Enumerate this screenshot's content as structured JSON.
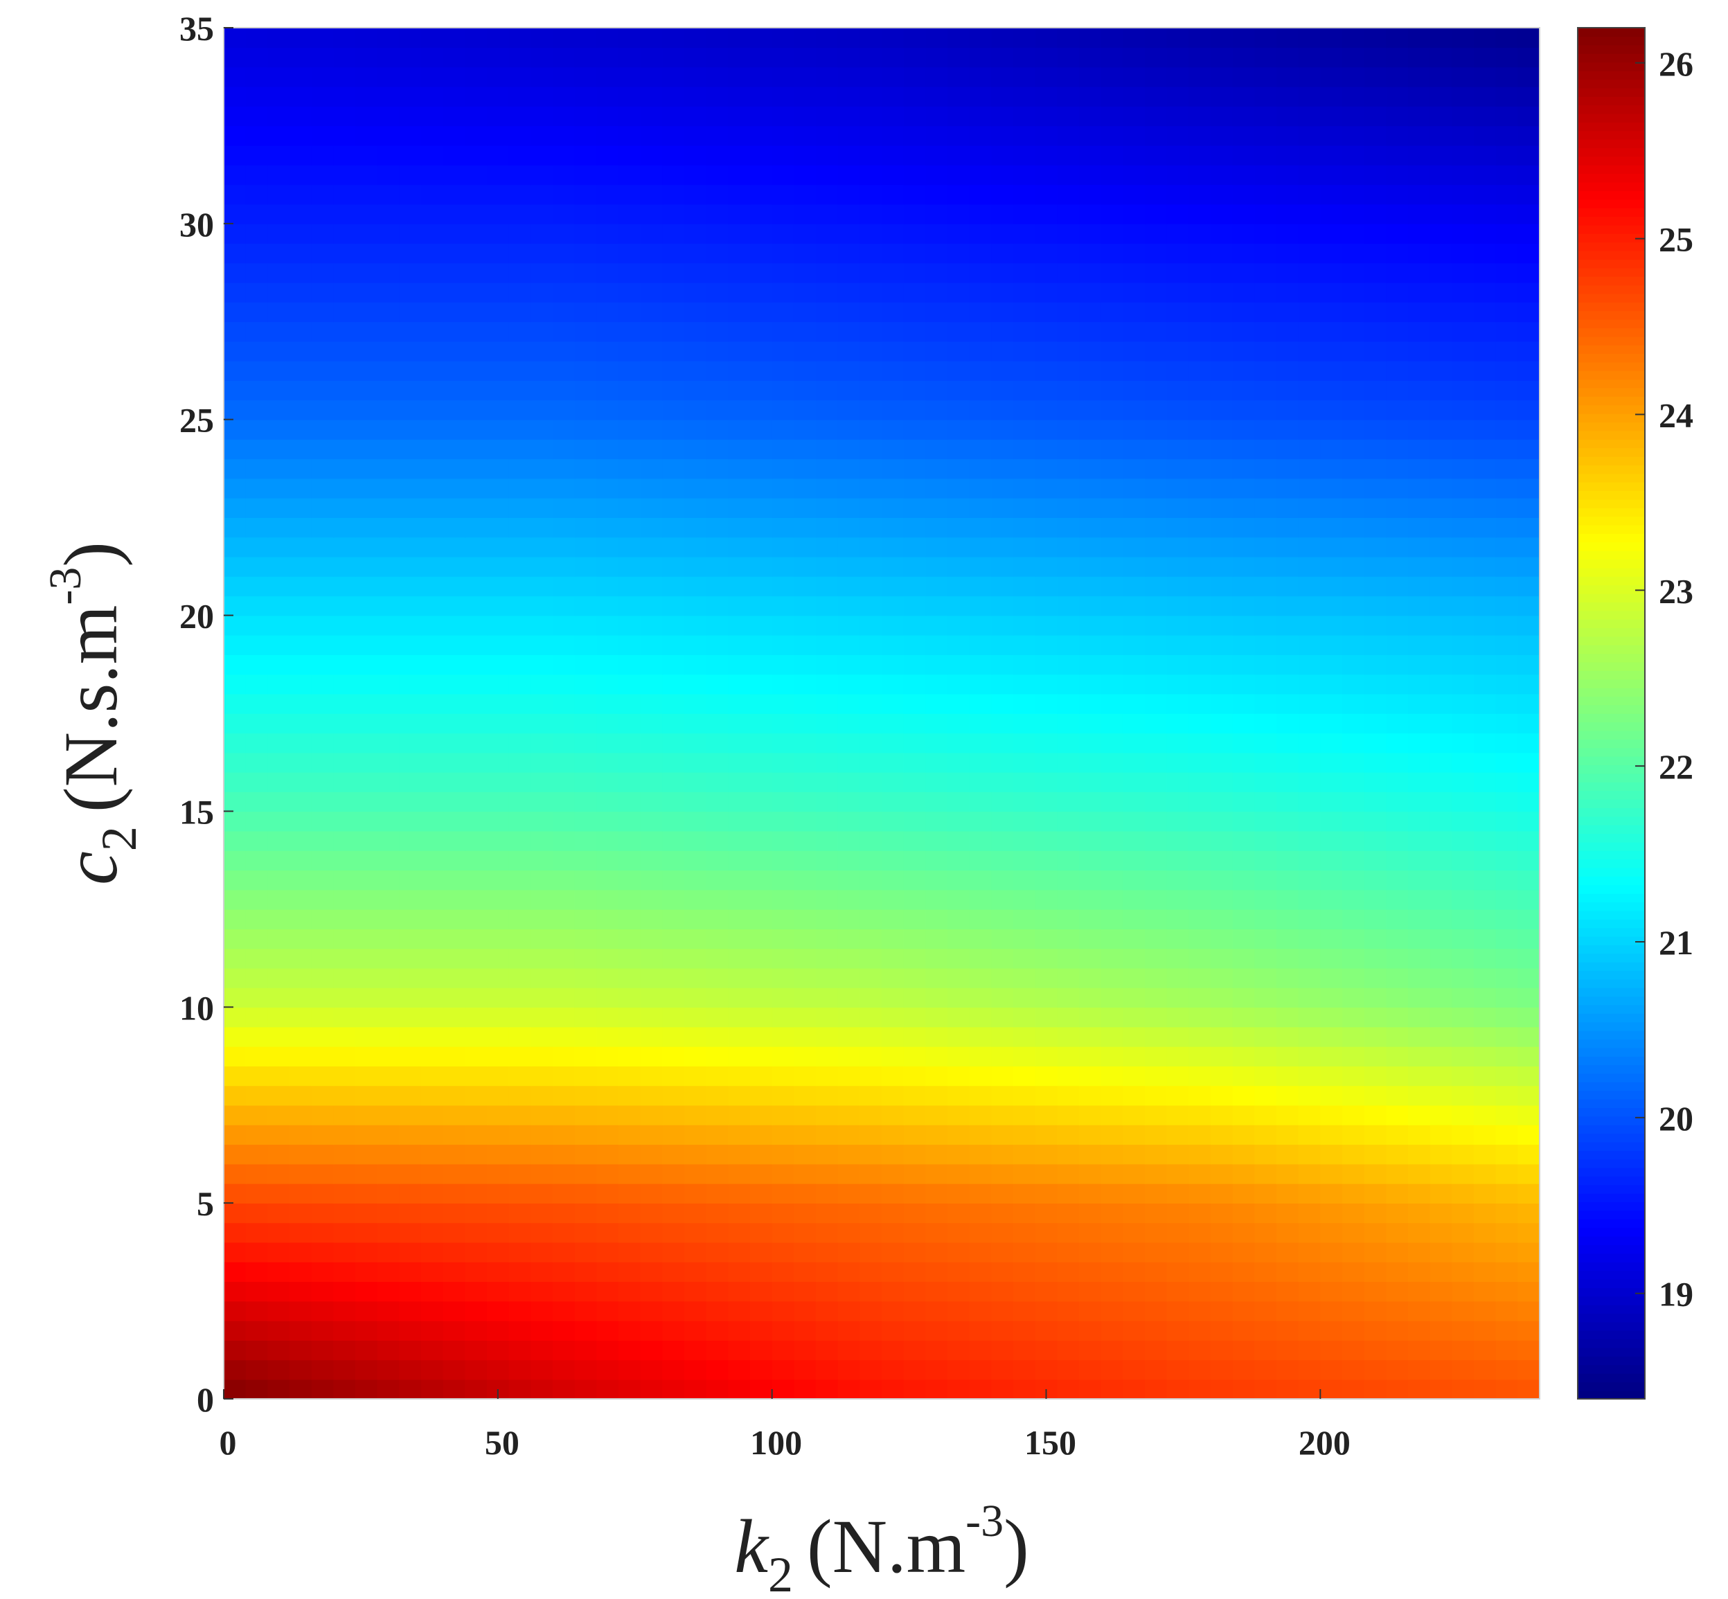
{
  "chart_data": {
    "type": "heatmap",
    "title": "",
    "xlabel": {
      "symbol": "k",
      "subscript": "2",
      "unit_open": "(N.m",
      "unit_exp": "-3",
      "unit_close": ")"
    },
    "ylabel": {
      "symbol": "c",
      "subscript": "2",
      "unit_open": "(N.s.m",
      "unit_exp": "-3",
      "unit_close": ")"
    },
    "xlim": [
      0,
      240
    ],
    "ylim": [
      0,
      35
    ],
    "xticks": [
      0,
      50,
      100,
      150,
      200
    ],
    "yticks": [
      0,
      5,
      10,
      15,
      20,
      25,
      30,
      35
    ],
    "colorbar": {
      "range": [
        18.4,
        26.2
      ],
      "ticks": [
        19,
        20,
        21,
        22,
        23,
        24,
        25,
        26
      ],
      "colormap": "jet",
      "placement": "right"
    },
    "grid": false,
    "z_samples": {
      "x": [
        0,
        60,
        120,
        180,
        240
      ],
      "y": [
        0,
        5,
        10,
        15,
        20,
        25,
        30,
        35
      ],
      "z": [
        [
          26.2,
          25.6,
          25.1,
          24.8,
          24.6
        ],
        [
          24.7,
          24.6,
          24.4,
          24.2,
          23.8
        ],
        [
          22.9,
          22.9,
          22.8,
          22.6,
          22.3
        ],
        [
          21.9,
          21.9,
          21.8,
          21.7,
          21.5
        ],
        [
          21.1,
          21.1,
          21.0,
          20.9,
          20.8
        ],
        [
          20.2,
          20.2,
          20.1,
          20.0,
          19.9
        ],
        [
          19.6,
          19.6,
          19.5,
          19.4,
          19.3
        ],
        [
          19.1,
          19.0,
          18.9,
          18.7,
          18.5
        ]
      ]
    }
  }
}
